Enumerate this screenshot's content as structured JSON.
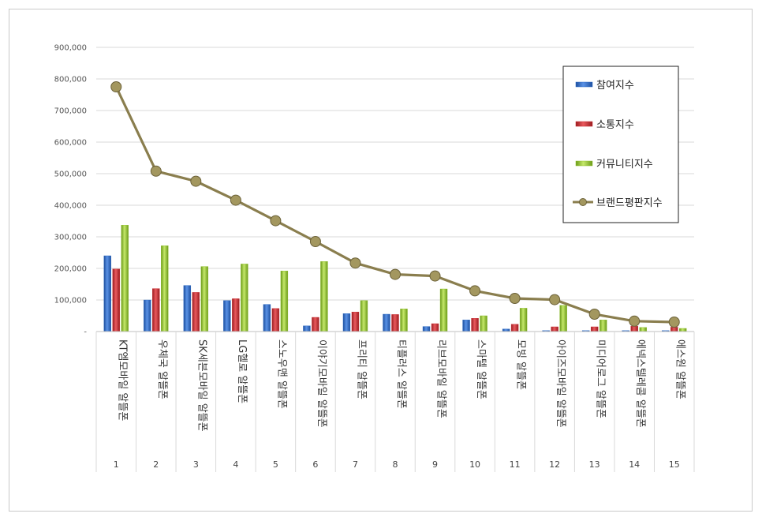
{
  "chart_data": {
    "type": "bar",
    "title": "",
    "xlabel": "",
    "ylabel": "",
    "ylim": [
      0,
      900000
    ],
    "yticks": [
      0,
      100000,
      200000,
      300000,
      400000,
      500000,
      600000,
      700000,
      800000,
      900000
    ],
    "ytick_labels": [
      "-",
      "100,000",
      "200,000",
      "300,000",
      "400,000",
      "500,000",
      "600,000",
      "700,000",
      "800,000",
      "900,000"
    ],
    "grid": true,
    "legend_position": "top-right",
    "ranks": [
      "1",
      "2",
      "3",
      "4",
      "5",
      "6",
      "7",
      "8",
      "9",
      "10",
      "11",
      "12",
      "13",
      "14",
      "15"
    ],
    "categories": [
      "KT엠모바일 알뜰폰",
      "우체국 알뜰폰",
      "SK세븐모바일 알뜰폰",
      "LG헬로 알뜰폰",
      "스노우맨 알뜰폰",
      "이야기모바일 알뜰폰",
      "프리티 알뜰폰",
      "티플러스 알뜰폰",
      "리브모바일 알뜰폰",
      "스마텔 알뜰폰",
      "모빙 알뜰폰",
      "아이즈모바일 알뜰폰",
      "미디어로그 알뜰폰",
      "에넥스텔레콤 알뜰폰",
      "에스원 알뜰폰"
    ],
    "series": [
      {
        "name": "참여지수",
        "type": "bar",
        "color": "#2e6bc4",
        "values": [
          240000,
          100000,
          146000,
          98000,
          86000,
          18000,
          57000,
          55000,
          16000,
          37000,
          8000,
          3000,
          3000,
          3000,
          3000
        ]
      },
      {
        "name": "소통지수",
        "type": "bar",
        "color": "#c8282d",
        "values": [
          198000,
          136000,
          124000,
          104000,
          73000,
          45000,
          62000,
          54000,
          25000,
          42000,
          23000,
          15000,
          15000,
          17000,
          14000
        ]
      },
      {
        "name": "커뮤니티지수",
        "type": "bar",
        "color": "#8fbf2a",
        "values": [
          337000,
          272000,
          206000,
          214000,
          192000,
          222000,
          98000,
          72000,
          135000,
          50000,
          74000,
          83000,
          37000,
          13000,
          10000
        ]
      },
      {
        "name": "브랜드평판지수",
        "type": "line",
        "color": "#8a7e4e",
        "values": [
          775000,
          508000,
          476000,
          416000,
          351000,
          285000,
          217000,
          181000,
          176000,
          129000,
          105000,
          101000,
          55000,
          33000,
          30000
        ]
      }
    ]
  }
}
